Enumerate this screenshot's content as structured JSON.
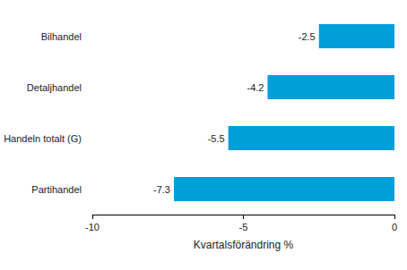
{
  "chart_data": {
    "type": "bar",
    "orientation": "horizontal",
    "categories": [
      "Bilhandel",
      "Detaljhandel",
      "Handeln totalt (G)",
      "Partihandel"
    ],
    "values": [
      -2.5,
      -4.2,
      -5.5,
      -7.3
    ],
    "color": "#009fda",
    "xlabel": "Kvartalsförändring %",
    "xlim": [
      -10,
      0
    ],
    "xticks": [
      -10,
      -5,
      0
    ],
    "grid": false,
    "data_labels": true
  }
}
